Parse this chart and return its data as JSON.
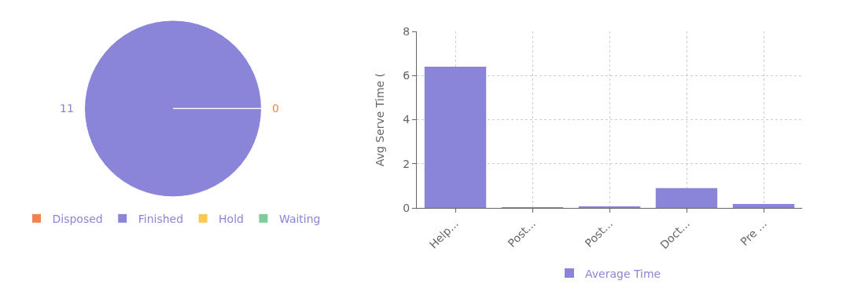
{
  "chart_data": [
    {
      "type": "pie",
      "categories": [
        "Disposed",
        "Finished",
        "Hold",
        "Waiting"
      ],
      "values": [
        0,
        11,
        0,
        0
      ],
      "colors": [
        "#f4834a",
        "#8a85d8",
        "#fac858",
        "#7ecc9a"
      ],
      "value_labels": [
        "0",
        "11",
        null,
        null
      ],
      "legend": "bottom"
    },
    {
      "type": "bar",
      "categories": [
        "Help...",
        "Post...",
        "Post...",
        "Doct...",
        "Pre ..."
      ],
      "ylabel": "Avg Serve Time (",
      "series": [
        {
          "name": "Average Time",
          "color": "#8a85d8",
          "values": [
            6.4,
            0.02,
            0.04,
            0.9,
            0.18
          ]
        }
      ],
      "ylim": [
        0,
        8
      ],
      "yticks": [
        0,
        2,
        4,
        6,
        8
      ],
      "grid": true,
      "legend": "bottom"
    }
  ]
}
